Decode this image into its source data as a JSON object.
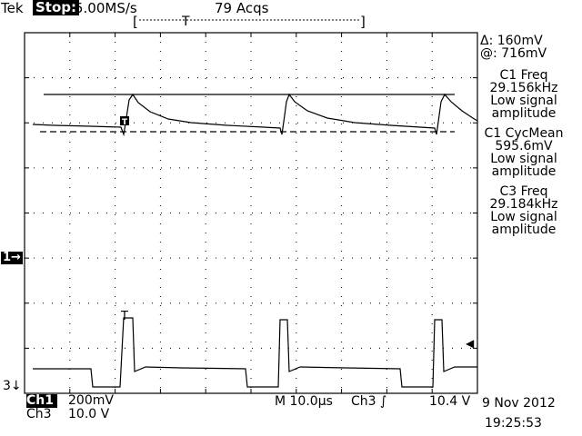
{
  "status_bar": {
    "brand": "Tek",
    "run_state": "Stop:",
    "sample_rate": "5.00MS/s",
    "acquisitions": "79 Acqs"
  },
  "record_window": {
    "left_bracket": "[",
    "right_bracket": "]",
    "trigger_mark": "T"
  },
  "cursor_readout": {
    "delta": "Δ: 160mV",
    "at": "@: 716mV"
  },
  "measurements": [
    {
      "label": "C1 Freq",
      "value": "29.156kHz",
      "note1": "Low signal",
      "note2": "amplitude"
    },
    {
      "label": "C1 CycMean",
      "value": "595.6mV",
      "note1": "Low signal",
      "note2": "amplitude"
    },
    {
      "label": "C3 Freq",
      "value": "29.184kHz",
      "note1": "Low signal",
      "note2": "amplitude"
    }
  ],
  "markers": {
    "ch1": "1→",
    "ch3": "3↓",
    "trigger_level": "◀",
    "trigger_T": "T"
  },
  "channels": [
    {
      "name": "Ch1",
      "scale": "200mV"
    },
    {
      "name": "Ch3",
      "scale": "10.0 V"
    }
  ],
  "horizontal": {
    "timebase": "M 10.0µs",
    "trigger_source": "Ch3",
    "trigger_slope": "∫",
    "trigger_level": "10.4 V"
  },
  "datetime": {
    "date": "9 Nov 2012",
    "time": "19:25:53"
  },
  "colors": {
    "background": "#ffffff",
    "trace": "#000000",
    "graticule": "#000000"
  }
}
